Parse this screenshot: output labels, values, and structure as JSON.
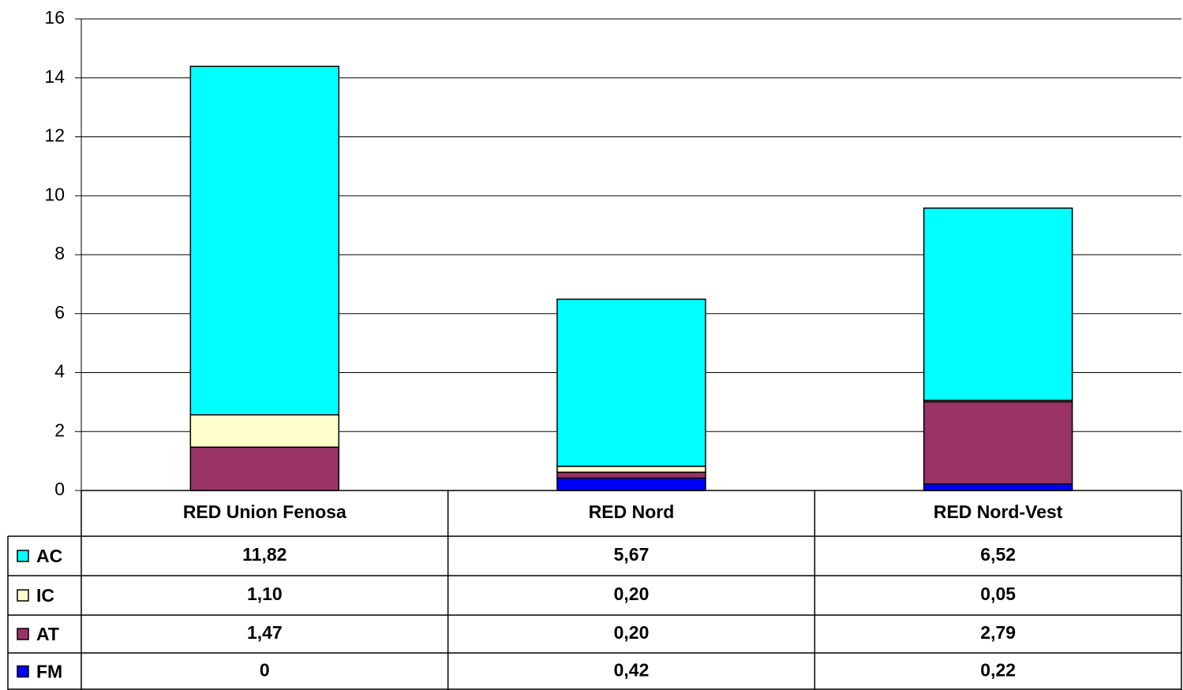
{
  "chart_data": {
    "type": "bar",
    "stacked": true,
    "categories": [
      "RED Union Fenosa",
      "RED Nord",
      "RED Nord-Vest"
    ],
    "series": [
      {
        "name": "AC",
        "color": "#00ffff",
        "values": [
          11.82,
          5.67,
          6.52
        ],
        "value_labels": [
          "11,82",
          "5,67",
          "6,52"
        ]
      },
      {
        "name": "IC",
        "color": "#ffffcc",
        "values": [
          1.1,
          0.2,
          0.05
        ],
        "value_labels": [
          "1,10",
          "0,20",
          "0,05"
        ]
      },
      {
        "name": "AT",
        "color": "#993366",
        "values": [
          1.47,
          0.2,
          2.79
        ],
        "value_labels": [
          "1,47",
          "0,20",
          "2,79"
        ]
      },
      {
        "name": "FM",
        "color": "#0000ff",
        "values": [
          0,
          0.42,
          0.22
        ],
        "value_labels": [
          "0",
          "0,42",
          "0,22"
        ]
      }
    ],
    "ylim": [
      0,
      16
    ],
    "yticks": [
      0,
      2,
      4,
      6,
      8,
      10,
      12,
      14,
      16
    ],
    "grid": true
  }
}
